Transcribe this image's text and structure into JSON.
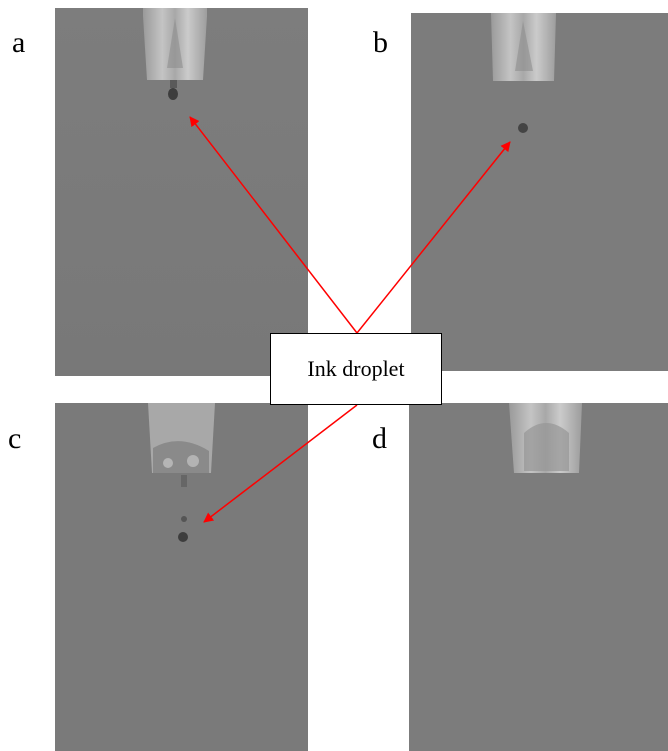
{
  "panels": [
    {
      "label": "a",
      "droplets": 1
    },
    {
      "label": "b",
      "droplets": 1
    },
    {
      "label": "c",
      "droplets": 2
    },
    {
      "label": "d",
      "droplets": 0
    }
  ],
  "callout": {
    "text": "Ink droplet"
  },
  "colors": {
    "background": "#7b7b7b",
    "nozzle": "#b9b9b9",
    "droplet": "#3d3d3d",
    "arrow": "#ff0000"
  }
}
